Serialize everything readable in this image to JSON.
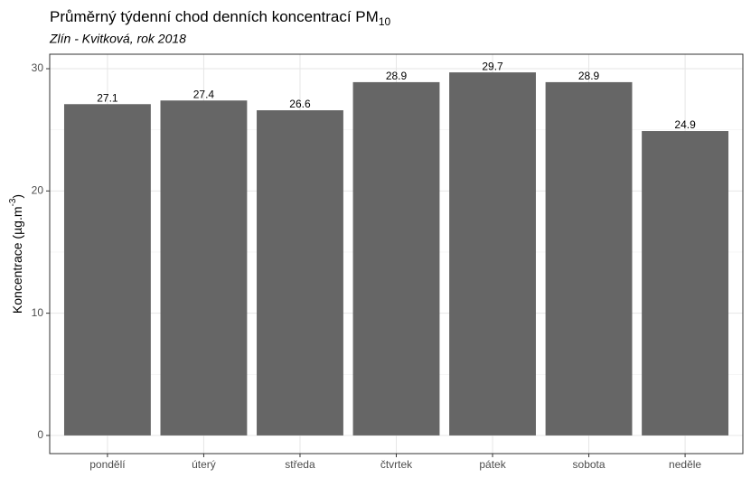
{
  "chart_data": {
    "type": "bar",
    "title": "Průměrný týdenní chod denních koncentrací PM10",
    "subtitle": "Zlín - Kvitková, rok 2018",
    "y_label": "Koncentrace (µg.m-3)",
    "categories": [
      "pondělí",
      "úterý",
      "středa",
      "čtvrtek",
      "pátek",
      "sobota",
      "neděle"
    ],
    "values": [
      27.1,
      27.4,
      26.6,
      28.9,
      29.7,
      28.9,
      24.9
    ],
    "color": "#666666",
    "ylim": [
      -1.485,
      31.185
    ],
    "yticks": [
      0,
      10,
      20,
      30
    ],
    "y_minor_grid": [
      5,
      15,
      25
    ],
    "grid": true
  }
}
